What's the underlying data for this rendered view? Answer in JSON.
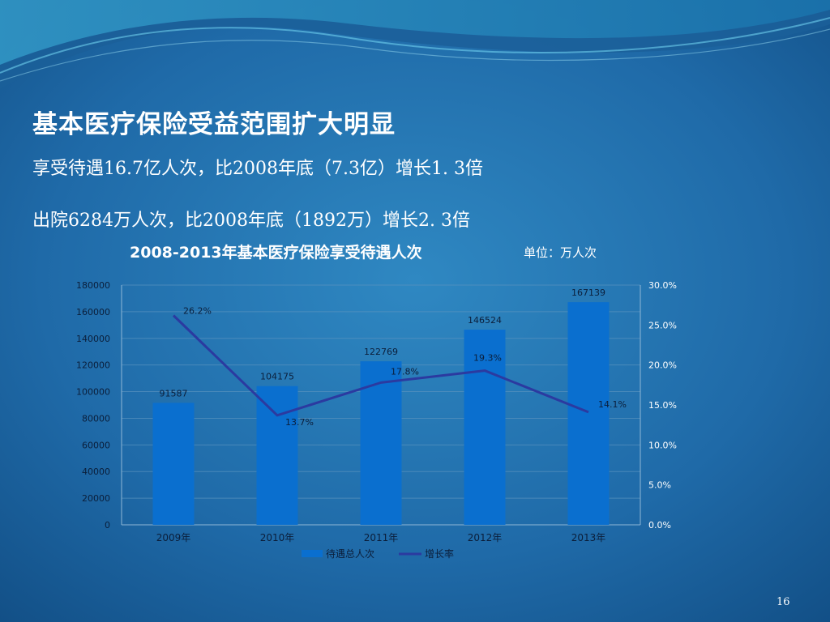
{
  "slide": {
    "headline": "基本医疗保险受益范围扩大明显",
    "line1": "享受待遇16.7亿人次，比2008年底（7.3亿）增长1. 3倍",
    "line2": "出院6284万人次，比2008年底（1892万）增长2. 3倍",
    "page_number": "16"
  },
  "colors": {
    "bar": "#0a6fcf",
    "line": "#2b3aa0",
    "text": "#ffffff",
    "tick": "#0b1e3a"
  },
  "chart_data": {
    "type": "bar",
    "title": "2008-2013年基本医疗保险享受待遇人次",
    "unit": "单位：万人次",
    "categories": [
      "2009年",
      "2010年",
      "2011年",
      "2012年",
      "2013年"
    ],
    "series": [
      {
        "name": "待遇总人次",
        "type": "bar",
        "axis": "left",
        "values": [
          91587,
          104175,
          122769,
          146524,
          167139
        ],
        "labels": [
          "91587",
          "104175",
          "122769",
          "146524",
          "167139"
        ]
      },
      {
        "name": "增长率",
        "type": "line",
        "axis": "right",
        "values": [
          26.2,
          13.7,
          17.8,
          19.3,
          14.1
        ],
        "labels": [
          "26.2%",
          "13.7%",
          "17.8%",
          "19.3%",
          "14.1%"
        ]
      }
    ],
    "y_left": {
      "min": 0,
      "max": 180000,
      "ticks": [
        "0",
        "20000",
        "40000",
        "60000",
        "80000",
        "100000",
        "120000",
        "140000",
        "160000",
        "180000"
      ]
    },
    "y_right": {
      "min": 0,
      "max": 30,
      "ticks": [
        "0.0%",
        "5.0%",
        "10.0%",
        "15.0%",
        "20.0%",
        "25.0%",
        "30.0%"
      ]
    },
    "grid": true,
    "legend": "bottom"
  }
}
